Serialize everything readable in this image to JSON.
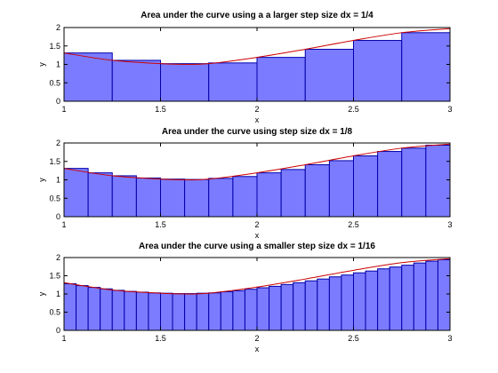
{
  "chart_data": [
    {
      "type": "bar",
      "title": "Area under the curve using a a larger step size dx = 1/4",
      "xlabel": "x",
      "ylabel": "y",
      "xlim": [
        1,
        3
      ],
      "ylim": [
        0,
        2
      ],
      "xticks": [
        "1",
        "1.5",
        "2",
        "2.5",
        "3"
      ],
      "yticks": [
        "0",
        "0.5",
        "1",
        "1.5",
        "2"
      ],
      "dx": 0.25,
      "x": [
        1.0,
        1.25,
        1.5,
        1.75,
        2.0,
        2.25,
        2.5,
        2.75
      ],
      "values": [
        1.31,
        1.11,
        1.02,
        1.04,
        1.19,
        1.41,
        1.65,
        1.86
      ],
      "bar_color": "#7b7bff",
      "bar_edge": "#0000aa",
      "curve": {
        "color": "#cc0000",
        "x": [
          1.0,
          1.25,
          1.5,
          1.625,
          1.75,
          2.0,
          2.25,
          2.5,
          2.75,
          3.0
        ],
        "y": [
          1.31,
          1.11,
          1.02,
          1.0,
          1.02,
          1.19,
          1.41,
          1.65,
          1.86,
          1.97
        ]
      }
    },
    {
      "type": "bar",
      "title": "Area under the curve using step size dx = 1/8",
      "xlabel": "x",
      "ylabel": "y",
      "xlim": [
        1,
        3
      ],
      "ylim": [
        0,
        2
      ],
      "xticks": [
        "1",
        "1.5",
        "2",
        "2.5",
        "3"
      ],
      "yticks": [
        "0",
        "0.5",
        "1",
        "1.5",
        "2"
      ],
      "dx": 0.125,
      "x": [
        1.0,
        1.125,
        1.25,
        1.375,
        1.5,
        1.625,
        1.75,
        1.875,
        2.0,
        2.125,
        2.25,
        2.375,
        2.5,
        2.625,
        2.75,
        2.875
      ],
      "values": [
        1.31,
        1.19,
        1.11,
        1.05,
        1.02,
        1.01,
        1.04,
        1.09,
        1.19,
        1.28,
        1.41,
        1.52,
        1.65,
        1.77,
        1.86,
        1.94
      ],
      "bar_color": "#7b7bff",
      "bar_edge": "#0000aa",
      "curve": {
        "color": "#cc0000",
        "x": [
          1.0,
          1.25,
          1.5,
          1.625,
          1.75,
          2.0,
          2.25,
          2.5,
          2.75,
          3.0
        ],
        "y": [
          1.31,
          1.11,
          1.02,
          1.0,
          1.02,
          1.19,
          1.41,
          1.65,
          1.86,
          1.97
        ]
      }
    },
    {
      "type": "bar",
      "title": "Area under the curve using a smaller step size dx = 1/16",
      "xlabel": "x",
      "ylabel": "y",
      "xlim": [
        1,
        3
      ],
      "ylim": [
        0,
        2
      ],
      "xticks": [
        "1",
        "1.5",
        "2",
        "2.5",
        "3"
      ],
      "yticks": [
        "0",
        "0.5",
        "1",
        "1.5",
        "2"
      ],
      "dx": 0.0625,
      "x": [
        1.0,
        1.0625,
        1.125,
        1.1875,
        1.25,
        1.3125,
        1.375,
        1.4375,
        1.5,
        1.5625,
        1.625,
        1.6875,
        1.75,
        1.8125,
        1.875,
        1.9375,
        2.0,
        2.0625,
        2.125,
        2.1875,
        2.25,
        2.3125,
        2.375,
        2.4375,
        2.5,
        2.5625,
        2.625,
        2.6875,
        2.75,
        2.8125,
        2.875,
        2.9375
      ],
      "values": [
        1.28,
        1.23,
        1.18,
        1.14,
        1.1,
        1.07,
        1.05,
        1.03,
        1.02,
        1.01,
        1.01,
        1.02,
        1.03,
        1.06,
        1.09,
        1.13,
        1.17,
        1.21,
        1.26,
        1.31,
        1.36,
        1.41,
        1.47,
        1.52,
        1.58,
        1.63,
        1.69,
        1.74,
        1.79,
        1.85,
        1.9,
        1.94
      ],
      "bar_color": "#7b7bff",
      "bar_edge": "#0000aa",
      "curve": {
        "color": "#cc0000",
        "x": [
          1.0,
          1.25,
          1.5,
          1.625,
          1.75,
          2.0,
          2.25,
          2.5,
          2.75,
          3.0
        ],
        "y": [
          1.31,
          1.11,
          1.02,
          1.0,
          1.02,
          1.19,
          1.41,
          1.65,
          1.86,
          1.97
        ]
      }
    }
  ]
}
